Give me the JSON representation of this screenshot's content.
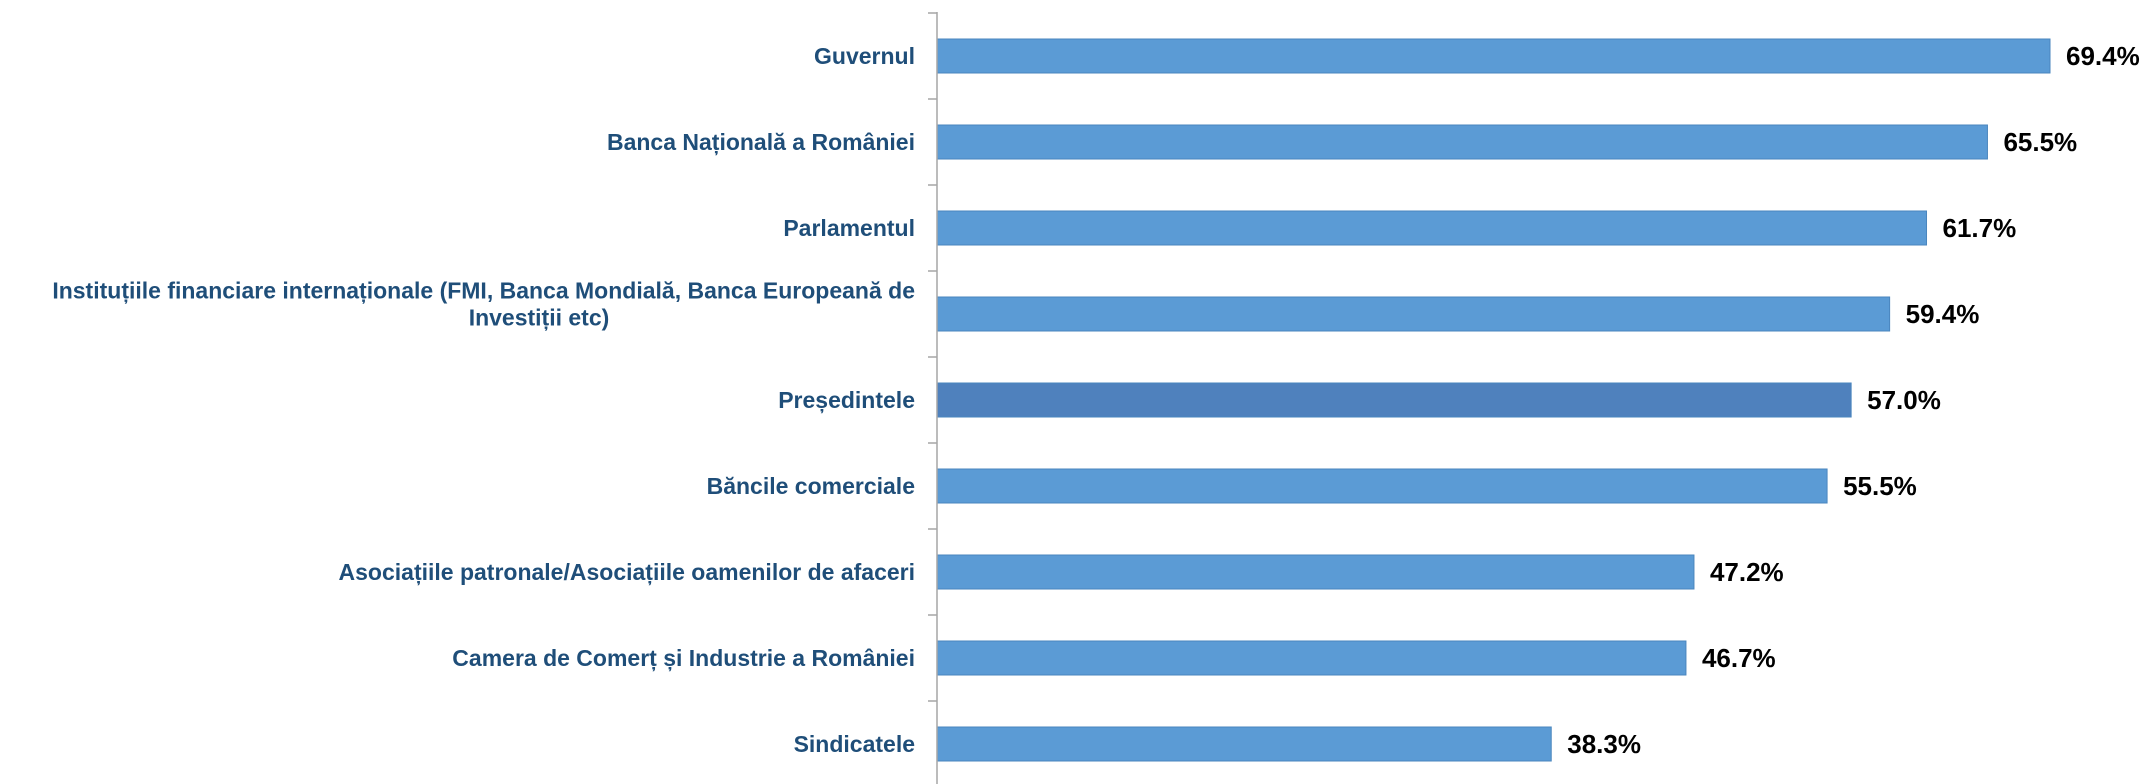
{
  "chart_data": {
    "type": "bar",
    "orientation": "horizontal",
    "categories": [
      [
        "Guvernul"
      ],
      [
        "Banca Națională a României"
      ],
      [
        "Parlamentul"
      ],
      [
        "Instituțiile financiare internaționale (FMI, Banca Mondială, Banca Europeană de",
        "Investiții etc)"
      ],
      [
        "Președintele"
      ],
      [
        "Băncile comerciale"
      ],
      [
        "Asociațiile patronale/Asociațiile oamenilor de afaceri"
      ],
      [
        "Camera de Comerț și Industrie a României"
      ],
      [
        "Sindicatele"
      ]
    ],
    "values": [
      69.4,
      65.5,
      61.7,
      59.4,
      57.0,
      55.5,
      47.2,
      46.7,
      38.3
    ],
    "value_labels": [
      "69.4%",
      "65.5%",
      "61.7%",
      "59.4%",
      "57.0%",
      "55.5%",
      "47.2%",
      "46.7%",
      "38.3%"
    ],
    "highlight_index": 4,
    "xlim": [
      0,
      69.4
    ],
    "grid": false,
    "legend": "none"
  },
  "colors": {
    "bar": "#5b9bd5",
    "bar_border": "#4a86be",
    "bar_highlight": "#4f81bd",
    "category_text": "#1f4e79",
    "value_text": "#000000",
    "axis": "#a6a6a6"
  }
}
